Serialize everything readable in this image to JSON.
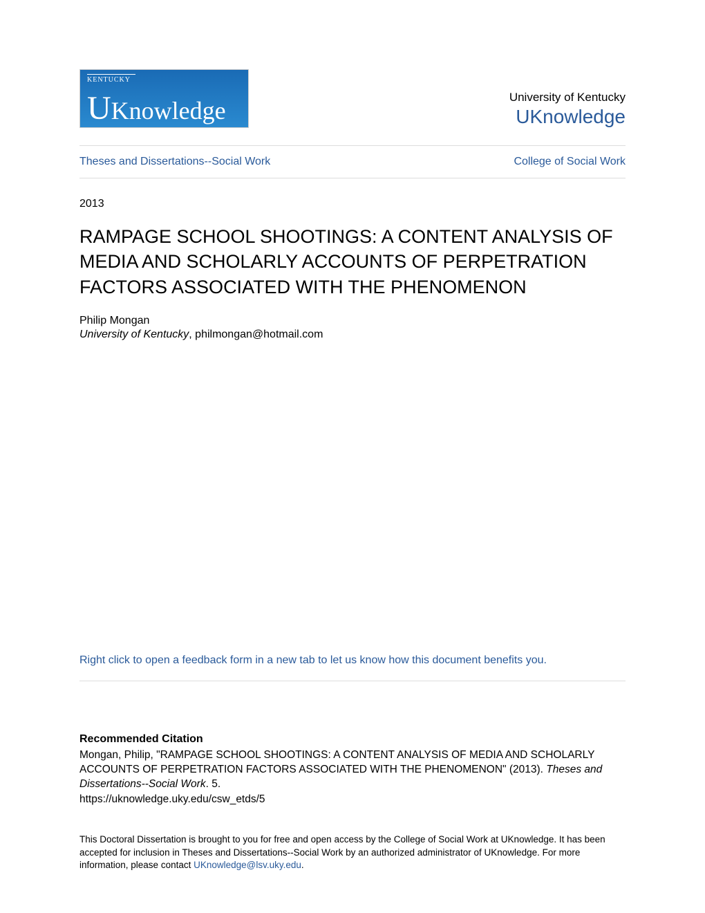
{
  "header": {
    "logo": {
      "top_line": "KENTUCKY",
      "main_text": "Knowledge",
      "big_letter": "U",
      "bg_gradient_top": "#1a6bb5",
      "bg_gradient_bottom": "#2a8ad0"
    },
    "university_name": "University of Kentucky",
    "repository_name": "UKnowledge"
  },
  "nav": {
    "left_link": "Theses and Dissertations--Social Work",
    "right_link": "College of Social Work"
  },
  "document": {
    "year": "2013",
    "title": "RAMPAGE SCHOOL SHOOTINGS: A CONTENT ANALYSIS OF MEDIA AND SCHOLARLY ACCOUNTS OF PERPETRATION FACTORS ASSOCIATED WITH THE PHENOMENON",
    "author_name": "Philip Mongan",
    "author_affiliation": "University of Kentucky",
    "author_email": "philmongan@hotmail.com"
  },
  "feedback": {
    "link_text": "Right click to open a feedback form in a new tab to let us know how this document benefits you."
  },
  "citation": {
    "heading": "Recommended Citation",
    "text_part1": "Mongan, Philip, \"RAMPAGE SCHOOL SHOOTINGS: A CONTENT ANALYSIS OF MEDIA AND SCHOLARLY ACCOUNTS OF PERPETRATION FACTORS ASSOCIATED WITH THE PHENOMENON\" (2013). ",
    "text_italic": "Theses and Dissertations--Social Work",
    "text_part2": ". 5.",
    "url": "https://uknowledge.uky.edu/csw_etds/5"
  },
  "footer": {
    "text_part1": "This Doctoral Dissertation is brought to you for free and open access by the College of Social Work at UKnowledge. It has been accepted for inclusion in Theses and Dissertations--Social Work by an authorized administrator of UKnowledge. For more information, please contact ",
    "contact_email": "UKnowledge@lsv.uky.edu",
    "text_part2": "."
  },
  "colors": {
    "link_color": "#2a5a9a",
    "text_color": "#000000",
    "border_color": "#dddddd",
    "background": "#ffffff"
  },
  "typography": {
    "title_fontsize": 27,
    "body_fontsize": 16,
    "footer_fontsize": 13.5,
    "repo_fontsize": 28
  }
}
